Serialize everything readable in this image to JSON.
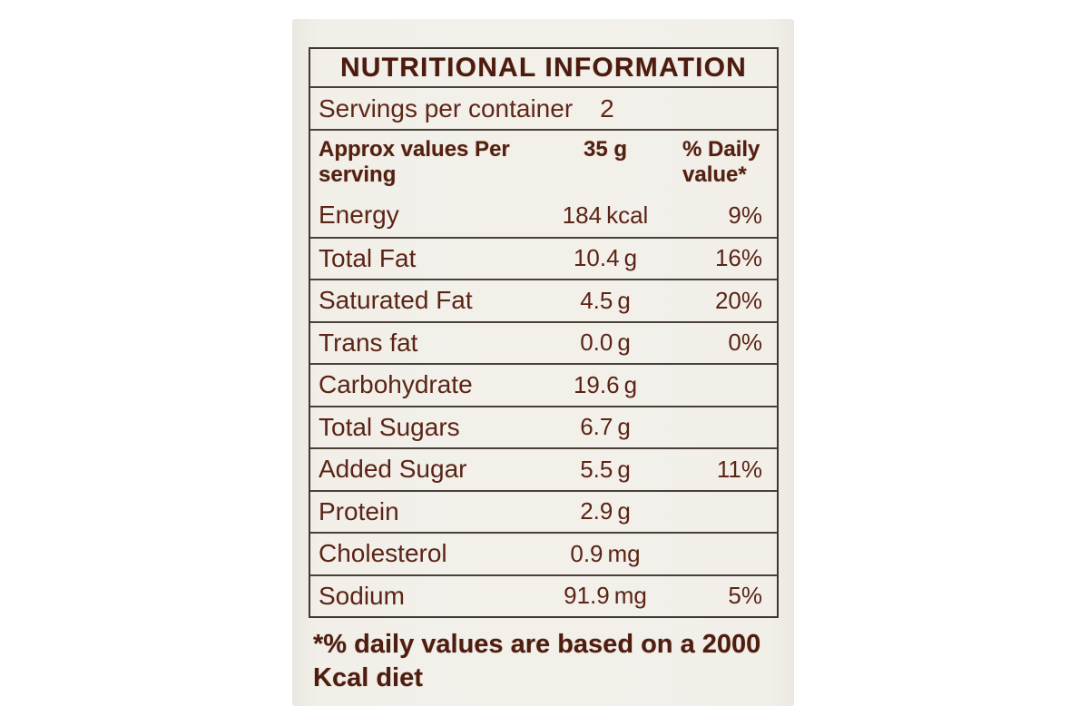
{
  "colors": {
    "page_bg": "#ffffff",
    "label_bg": "#f3f0ea",
    "border_dark": "#3f3831",
    "text_brown": "#5b2415",
    "title_brown": "#4c1b0e"
  },
  "label": {
    "title": "NUTRITIONAL INFORMATION",
    "servings": {
      "label": "Servings per container",
      "value": "2"
    },
    "header": {
      "approx": "Approx values Per serving",
      "serving_size": "35 g",
      "daily": "% Daily value*"
    },
    "rows": [
      {
        "name": "Energy",
        "value": "184",
        "unit": "kcal",
        "daily": "9%"
      },
      {
        "name": "Total Fat",
        "value": "10.4",
        "unit": "g",
        "daily": "16%"
      },
      {
        "name": "Saturated Fat",
        "value": "4.5",
        "unit": "g",
        "daily": "20%"
      },
      {
        "name": "Trans fat",
        "value": "0.0",
        "unit": "g",
        "daily": "0%"
      },
      {
        "name": "Carbohydrate",
        "value": "19.6",
        "unit": "g",
        "daily": ""
      },
      {
        "name": "Total Sugars",
        "value": "6.7",
        "unit": "g",
        "daily": ""
      },
      {
        "name": "Added Sugar",
        "value": "5.5",
        "unit": "g",
        "daily": "11%"
      },
      {
        "name": "Protein",
        "value": "2.9",
        "unit": "g",
        "daily": ""
      },
      {
        "name": "Cholesterol",
        "value": "0.9",
        "unit": "mg",
        "daily": ""
      },
      {
        "name": "Sodium",
        "value": "91.9",
        "unit": "mg",
        "daily": "5%"
      }
    ],
    "footnote": "*% daily values are based on a 2000 Kcal diet"
  }
}
